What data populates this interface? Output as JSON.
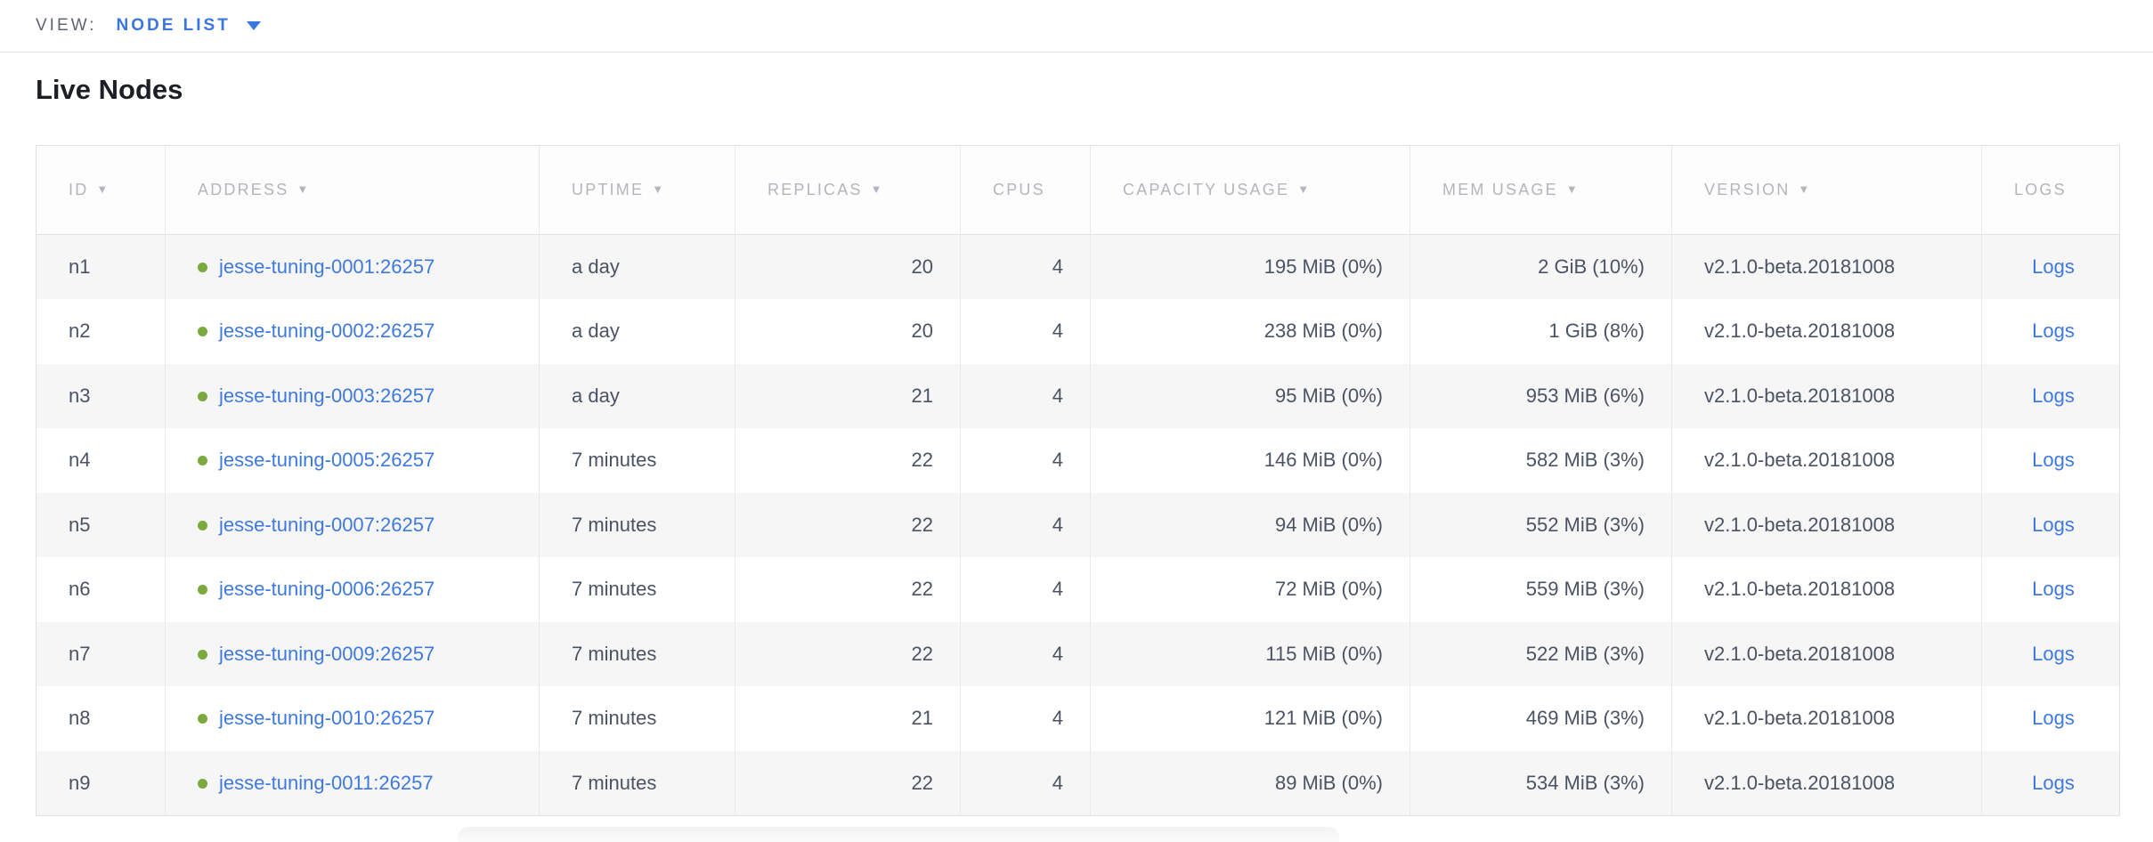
{
  "view_bar": {
    "label": "VIEW:",
    "selected_view": "NODE LIST"
  },
  "page": {
    "title": "Live Nodes"
  },
  "table": {
    "columns": [
      {
        "field": "id",
        "label": "ID",
        "sortable": true,
        "align": "left"
      },
      {
        "field": "address",
        "label": "ADDRESS",
        "sortable": true,
        "align": "left"
      },
      {
        "field": "uptime",
        "label": "UPTIME",
        "sortable": true,
        "align": "left"
      },
      {
        "field": "replicas",
        "label": "REPLICAS",
        "sortable": true,
        "align": "right"
      },
      {
        "field": "cpus",
        "label": "CPUS",
        "sortable": false,
        "align": "right"
      },
      {
        "field": "capacity",
        "label": "CAPACITY USAGE",
        "sortable": true,
        "align": "right"
      },
      {
        "field": "mem",
        "label": "MEM USAGE",
        "sortable": true,
        "align": "right"
      },
      {
        "field": "version",
        "label": "VERSION",
        "sortable": true,
        "align": "left"
      },
      {
        "field": "logs",
        "label": "LOGS",
        "sortable": false,
        "align": "center"
      }
    ],
    "rows": [
      {
        "id": "n1",
        "address": "jesse-tuning-0001:26257",
        "status": "live",
        "uptime": "a day",
        "replicas": "20",
        "cpus": "4",
        "capacity": "195 MiB (0%)",
        "mem": "2 GiB (10%)",
        "version": "v2.1.0-beta.20181008",
        "logs": "Logs"
      },
      {
        "id": "n2",
        "address": "jesse-tuning-0002:26257",
        "status": "live",
        "uptime": "a day",
        "replicas": "20",
        "cpus": "4",
        "capacity": "238 MiB (0%)",
        "mem": "1 GiB (8%)",
        "version": "v2.1.0-beta.20181008",
        "logs": "Logs"
      },
      {
        "id": "n3",
        "address": "jesse-tuning-0003:26257",
        "status": "live",
        "uptime": "a day",
        "replicas": "21",
        "cpus": "4",
        "capacity": "95 MiB (0%)",
        "mem": "953 MiB (6%)",
        "version": "v2.1.0-beta.20181008",
        "logs": "Logs"
      },
      {
        "id": "n4",
        "address": "jesse-tuning-0005:26257",
        "status": "live",
        "uptime": "7 minutes",
        "replicas": "22",
        "cpus": "4",
        "capacity": "146 MiB (0%)",
        "mem": "582 MiB (3%)",
        "version": "v2.1.0-beta.20181008",
        "logs": "Logs"
      },
      {
        "id": "n5",
        "address": "jesse-tuning-0007:26257",
        "status": "live",
        "uptime": "7 minutes",
        "replicas": "22",
        "cpus": "4",
        "capacity": "94 MiB (0%)",
        "mem": "552 MiB (3%)",
        "version": "v2.1.0-beta.20181008",
        "logs": "Logs"
      },
      {
        "id": "n6",
        "address": "jesse-tuning-0006:26257",
        "status": "live",
        "uptime": "7 minutes",
        "replicas": "22",
        "cpus": "4",
        "capacity": "72 MiB (0%)",
        "mem": "559 MiB (3%)",
        "version": "v2.1.0-beta.20181008",
        "logs": "Logs"
      },
      {
        "id": "n7",
        "address": "jesse-tuning-0009:26257",
        "status": "live",
        "uptime": "7 minutes",
        "replicas": "22",
        "cpus": "4",
        "capacity": "115 MiB (0%)",
        "mem": "522 MiB (3%)",
        "version": "v2.1.0-beta.20181008",
        "logs": "Logs"
      },
      {
        "id": "n8",
        "address": "jesse-tuning-0010:26257",
        "status": "live",
        "uptime": "7 minutes",
        "replicas": "21",
        "cpus": "4",
        "capacity": "121 MiB (0%)",
        "mem": "469 MiB (3%)",
        "version": "v2.1.0-beta.20181008",
        "logs": "Logs"
      },
      {
        "id": "n9",
        "address": "jesse-tuning-0011:26257",
        "status": "live",
        "uptime": "7 minutes",
        "replicas": "22",
        "cpus": "4",
        "capacity": "89 MiB (0%)",
        "mem": "534 MiB (3%)",
        "version": "v2.1.0-beta.20181008",
        "logs": "Logs"
      }
    ]
  },
  "colors": {
    "link_blue": "#3e79df",
    "view_blue": "#3a76e0",
    "status_green": "#7aa93e",
    "header_gray": "#b2b6bc",
    "body_text": "#4a5364",
    "row_stripe": "#f6f6f6"
  }
}
